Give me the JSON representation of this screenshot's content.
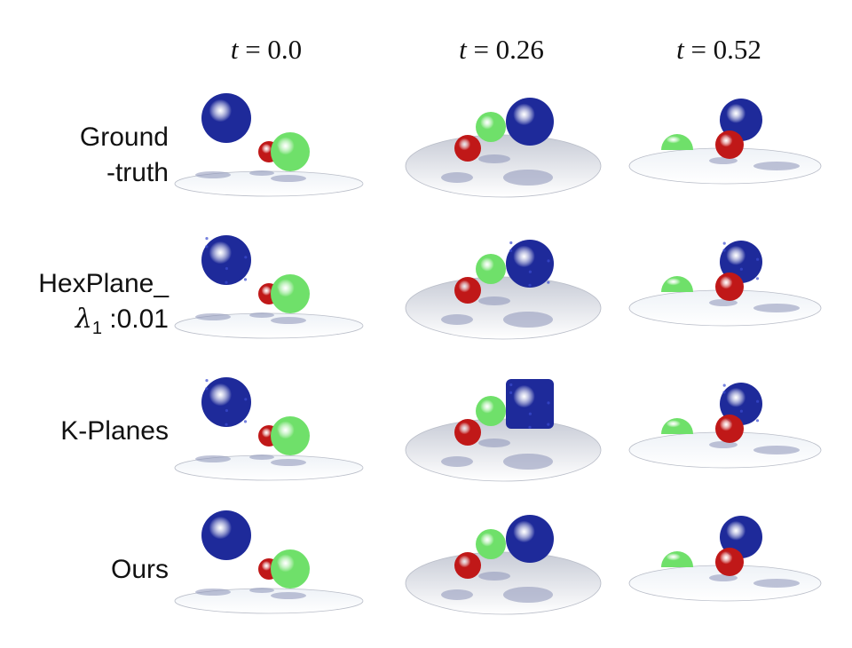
{
  "columns": [
    {
      "var": "t",
      "eq": " = 0.0"
    },
    {
      "var": "t",
      "eq": " = 0.26"
    },
    {
      "var": "t",
      "eq": " = 0.52"
    }
  ],
  "rows": [
    {
      "line1": "Ground",
      "line2": "-truth"
    },
    {
      "line1": "HexPlane_",
      "line2_sym": "λ",
      "line2_sub": "1",
      "line2": " :0.01"
    },
    {
      "line1": "K-Planes",
      "line2": ""
    },
    {
      "line1": "Ours",
      "line2": ""
    }
  ],
  "colors": {
    "blue_ball": "#1e2a9a",
    "red_ball": "#c01818",
    "green_ball": "#6fe06a",
    "plate_light": "#eef2f7",
    "plate_dark": "#c7cbd6",
    "shadow": "#8c93b8"
  }
}
